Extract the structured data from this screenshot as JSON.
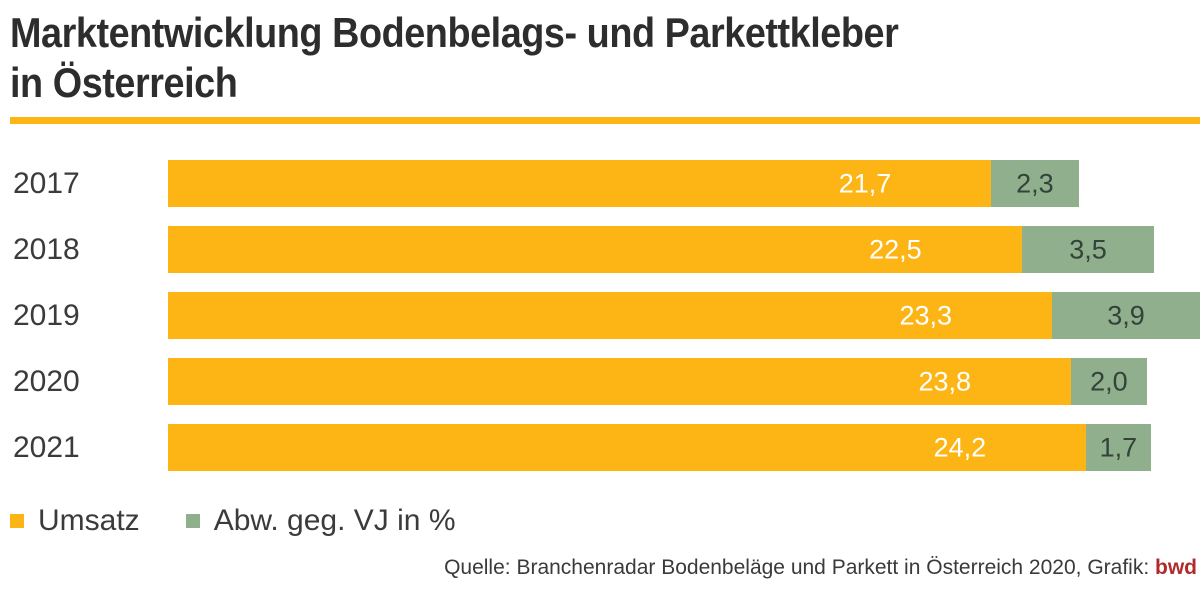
{
  "header": {
    "title_line1": "Marktentwicklung Bodenbelags- und Parkettkleber",
    "title_line2": "in Österreich"
  },
  "colors": {
    "accent_rule": "#FDB515",
    "umsatz_orange": "#FDB515",
    "abw_green": "#90AF8C",
    "title_text": "#2D2D2E",
    "axis_text": "#3B3B3C",
    "bar_label_light": "#FFFFFF",
    "bar_label_dark": "#33423A",
    "brand_red": "#B02C2C"
  },
  "chart_data": {
    "type": "bar",
    "orientation": "horizontal",
    "stacked": true,
    "title": "Marktentwicklung Bodenbelags- und Parkettkleber in Österreich",
    "categories": [
      "2017",
      "2018",
      "2019",
      "2020",
      "2021"
    ],
    "series": [
      {
        "name": "Umsatz",
        "color": "#FDB515",
        "values": [
          21.7,
          22.5,
          23.3,
          23.8,
          24.2
        ],
        "labels": [
          "21,7",
          "22,5",
          "23,3",
          "23,8",
          "24,2"
        ]
      },
      {
        "name": "Abw. geg. VJ in %",
        "color": "#90AF8C",
        "values": [
          2.3,
          3.5,
          3.9,
          2.0,
          1.7
        ],
        "labels": [
          "2,3",
          "3,5",
          "3,9",
          "2,0",
          "1,7"
        ]
      }
    ],
    "xlim": [
      0,
      27.2
    ],
    "grid": false,
    "legend_position": "bottom"
  },
  "legend": {
    "items": [
      {
        "label": "Umsatz",
        "color": "#FDB515"
      },
      {
        "label": "Abw. geg. VJ in %",
        "color": "#90AF8C"
      }
    ]
  },
  "source": {
    "text": "Quelle: Branchenradar Bodenbeläge und Parkett in Österreich 2020, Grafik: ",
    "brand": "bwd"
  }
}
